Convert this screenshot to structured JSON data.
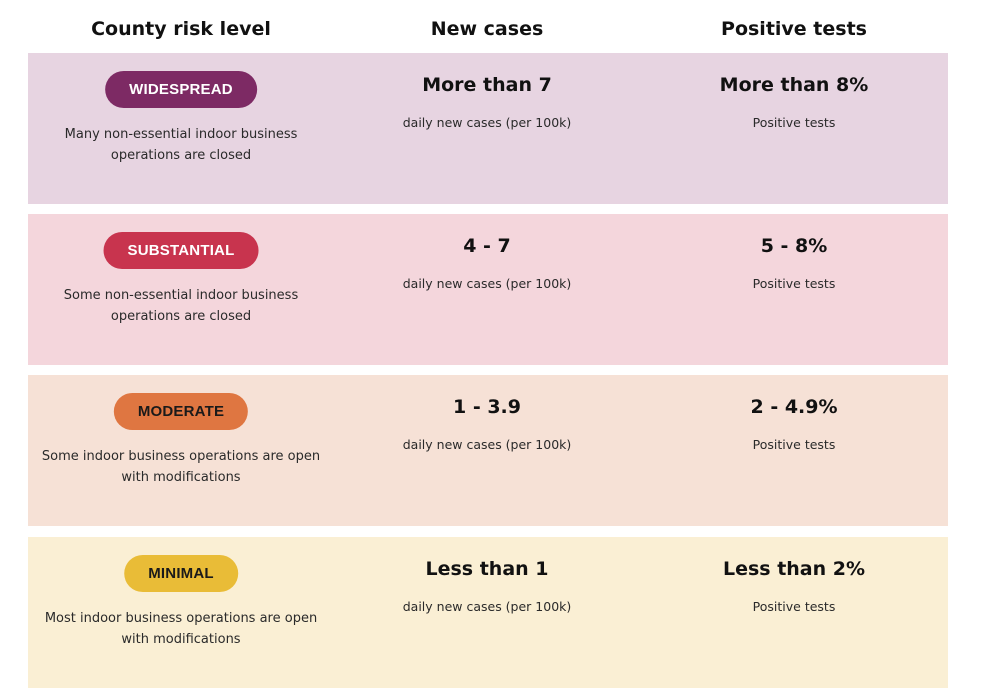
{
  "header": {
    "col1": "County risk level",
    "col2": "New cases",
    "col3": "Positive tests"
  },
  "tiers": [
    {
      "badge": "WIDESPREAD",
      "description": "Many non-essential indoor business operations are closed",
      "new_cases": "More than 7",
      "new_cases_unit": "daily new cases (per 100k)",
      "positive_tests": "More than 8%",
      "positive_tests_unit": "Positive tests",
      "row_color": "#e7d4e1",
      "badge_color": "#7d2a64",
      "badge_text_color": "#ffffff"
    },
    {
      "badge": "SUBSTANTIAL",
      "description": "Some non-essential indoor business operations are closed",
      "new_cases": "4 - 7",
      "new_cases_unit": "daily new cases (per 100k)",
      "positive_tests": "5 - 8%",
      "positive_tests_unit": "Positive tests",
      "row_color": "#f4d6dc",
      "badge_color": "#c8344e",
      "badge_text_color": "#ffffff"
    },
    {
      "badge": "MODERATE",
      "description": "Some indoor business operations are open with modifications",
      "new_cases": "1 - 3.9",
      "new_cases_unit": "daily new cases (per 100k)",
      "positive_tests": "2 - 4.9%",
      "positive_tests_unit": "Positive tests",
      "row_color": "#f6e1d6",
      "badge_color": "#df7641",
      "badge_text_color": "#1a1a1a"
    },
    {
      "badge": "MINIMAL",
      "description": "Most indoor business operations are open with modifications",
      "new_cases": "Less than 1",
      "new_cases_unit": "daily new cases (per 100k)",
      "positive_tests": "Less than 2%",
      "positive_tests_unit": "Positive tests",
      "row_color": "#faefd4",
      "badge_color": "#e9bc37",
      "badge_text_color": "#1a1a1a"
    }
  ]
}
